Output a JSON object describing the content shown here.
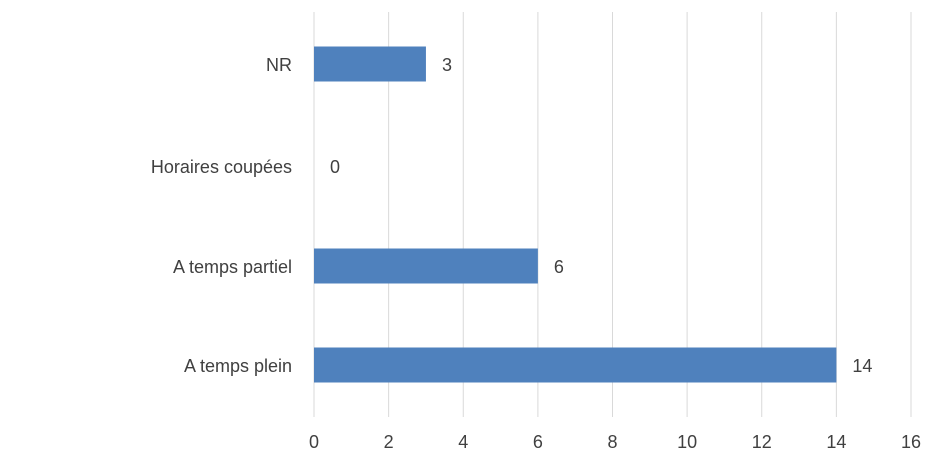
{
  "chart_data": {
    "type": "bar",
    "orientation": "horizontal",
    "categories": [
      "NR",
      "Horaires coupées",
      "A temps partiel",
      "A temps plein"
    ],
    "values": [
      3,
      0,
      6,
      14
    ],
    "data_labels": [
      "3",
      "0",
      "6",
      "14"
    ],
    "xlim": [
      0,
      16
    ],
    "x_ticks": [
      0,
      2,
      4,
      6,
      8,
      10,
      12,
      14,
      16
    ],
    "x_tick_labels": [
      "0",
      "2",
      "4",
      "6",
      "8",
      "10",
      "12",
      "14",
      "16"
    ],
    "grid": "vertical",
    "legend": "none",
    "title": "",
    "xlabel": "",
    "ylabel": "",
    "bar_color": "#4f81bd",
    "grid_color": "#d9d9d9",
    "text_color": "#404040"
  }
}
